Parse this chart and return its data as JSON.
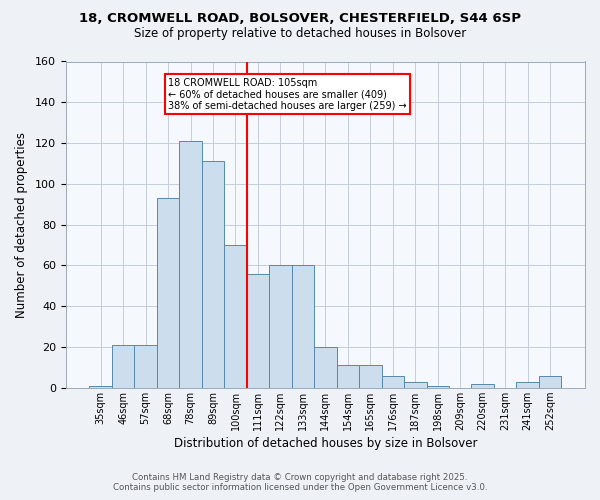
{
  "title_line1": "18, CROMWELL ROAD, BOLSOVER, CHESTERFIELD, S44 6SP",
  "title_line2": "Size of property relative to detached houses in Bolsover",
  "xlabel": "Distribution of detached houses by size in Bolsover",
  "ylabel": "Number of detached properties",
  "categories": [
    "35sqm",
    "46sqm",
    "57sqm",
    "68sqm",
    "78sqm",
    "89sqm",
    "100sqm",
    "111sqm",
    "122sqm",
    "133sqm",
    "144sqm",
    "154sqm",
    "165sqm",
    "176sqm",
    "187sqm",
    "198sqm",
    "209sqm",
    "220sqm",
    "231sqm",
    "241sqm",
    "252sqm"
  ],
  "values": [
    1,
    21,
    21,
    93,
    121,
    111,
    70,
    56,
    60,
    60,
    20,
    11,
    11,
    6,
    3,
    1,
    0,
    2,
    0,
    3,
    6
  ],
  "bar_color": "#ccdded",
  "bar_edge_color": "#5588aa",
  "red_line_x": 6.5,
  "annotation_line1": "18 CROMWELL ROAD: 105sqm",
  "annotation_line2": "← 60% of detached houses are smaller (409)",
  "annotation_line3": "38% of semi-detached houses are larger (259) →",
  "ylim": [
    0,
    160
  ],
  "yticks": [
    0,
    20,
    40,
    60,
    80,
    100,
    120,
    140,
    160
  ],
  "footer_line1": "Contains HM Land Registry data © Crown copyright and database right 2025.",
  "footer_line2": "Contains public sector information licensed under the Open Government Licence v3.0.",
  "bg_color": "#eef2f7",
  "plot_bg_color": "#f5f8fc",
  "grid_color": "#c5cdd8"
}
